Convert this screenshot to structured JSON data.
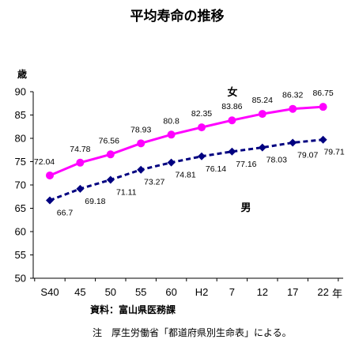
{
  "chart_data": {
    "type": "line",
    "title": "平均寿命の推移",
    "ylabel": "歳",
    "xlabel": "年",
    "categories": [
      "S40",
      "45",
      "50",
      "55",
      "60",
      "H2",
      "7",
      "12",
      "17",
      "22"
    ],
    "ylim": [
      50,
      90
    ],
    "yticks": [
      50,
      55,
      60,
      65,
      70,
      75,
      80,
      85,
      90
    ],
    "grid": false,
    "series": [
      {
        "name": "女",
        "color": "#ff00ff",
        "line_style": "solid",
        "marker": "circle",
        "values": [
          72.04,
          74.78,
          76.56,
          78.93,
          80.8,
          82.35,
          83.86,
          85.24,
          86.32,
          86.75
        ],
        "labels": [
          "72.04",
          "74.78",
          "76.56",
          "78.93",
          "80.8",
          "82.35",
          "83.86",
          "85.24",
          "86.32",
          "86.75"
        ]
      },
      {
        "name": "男",
        "color": "#000080",
        "line_style": "dashed",
        "marker": "diamond",
        "values": [
          66.7,
          69.18,
          71.11,
          73.27,
          74.81,
          76.14,
          77.16,
          78.03,
          79.07,
          79.71
        ],
        "labels": [
          "66.7",
          "69.18",
          "71.11",
          "73.27",
          "74.81",
          "76.14",
          "77.16",
          "78.03",
          "79.07",
          "79.71"
        ]
      }
    ]
  },
  "footer": {
    "source": "資料：富山県医務課",
    "note": "注　厚生労働省「都道府県別生命表」による。"
  }
}
